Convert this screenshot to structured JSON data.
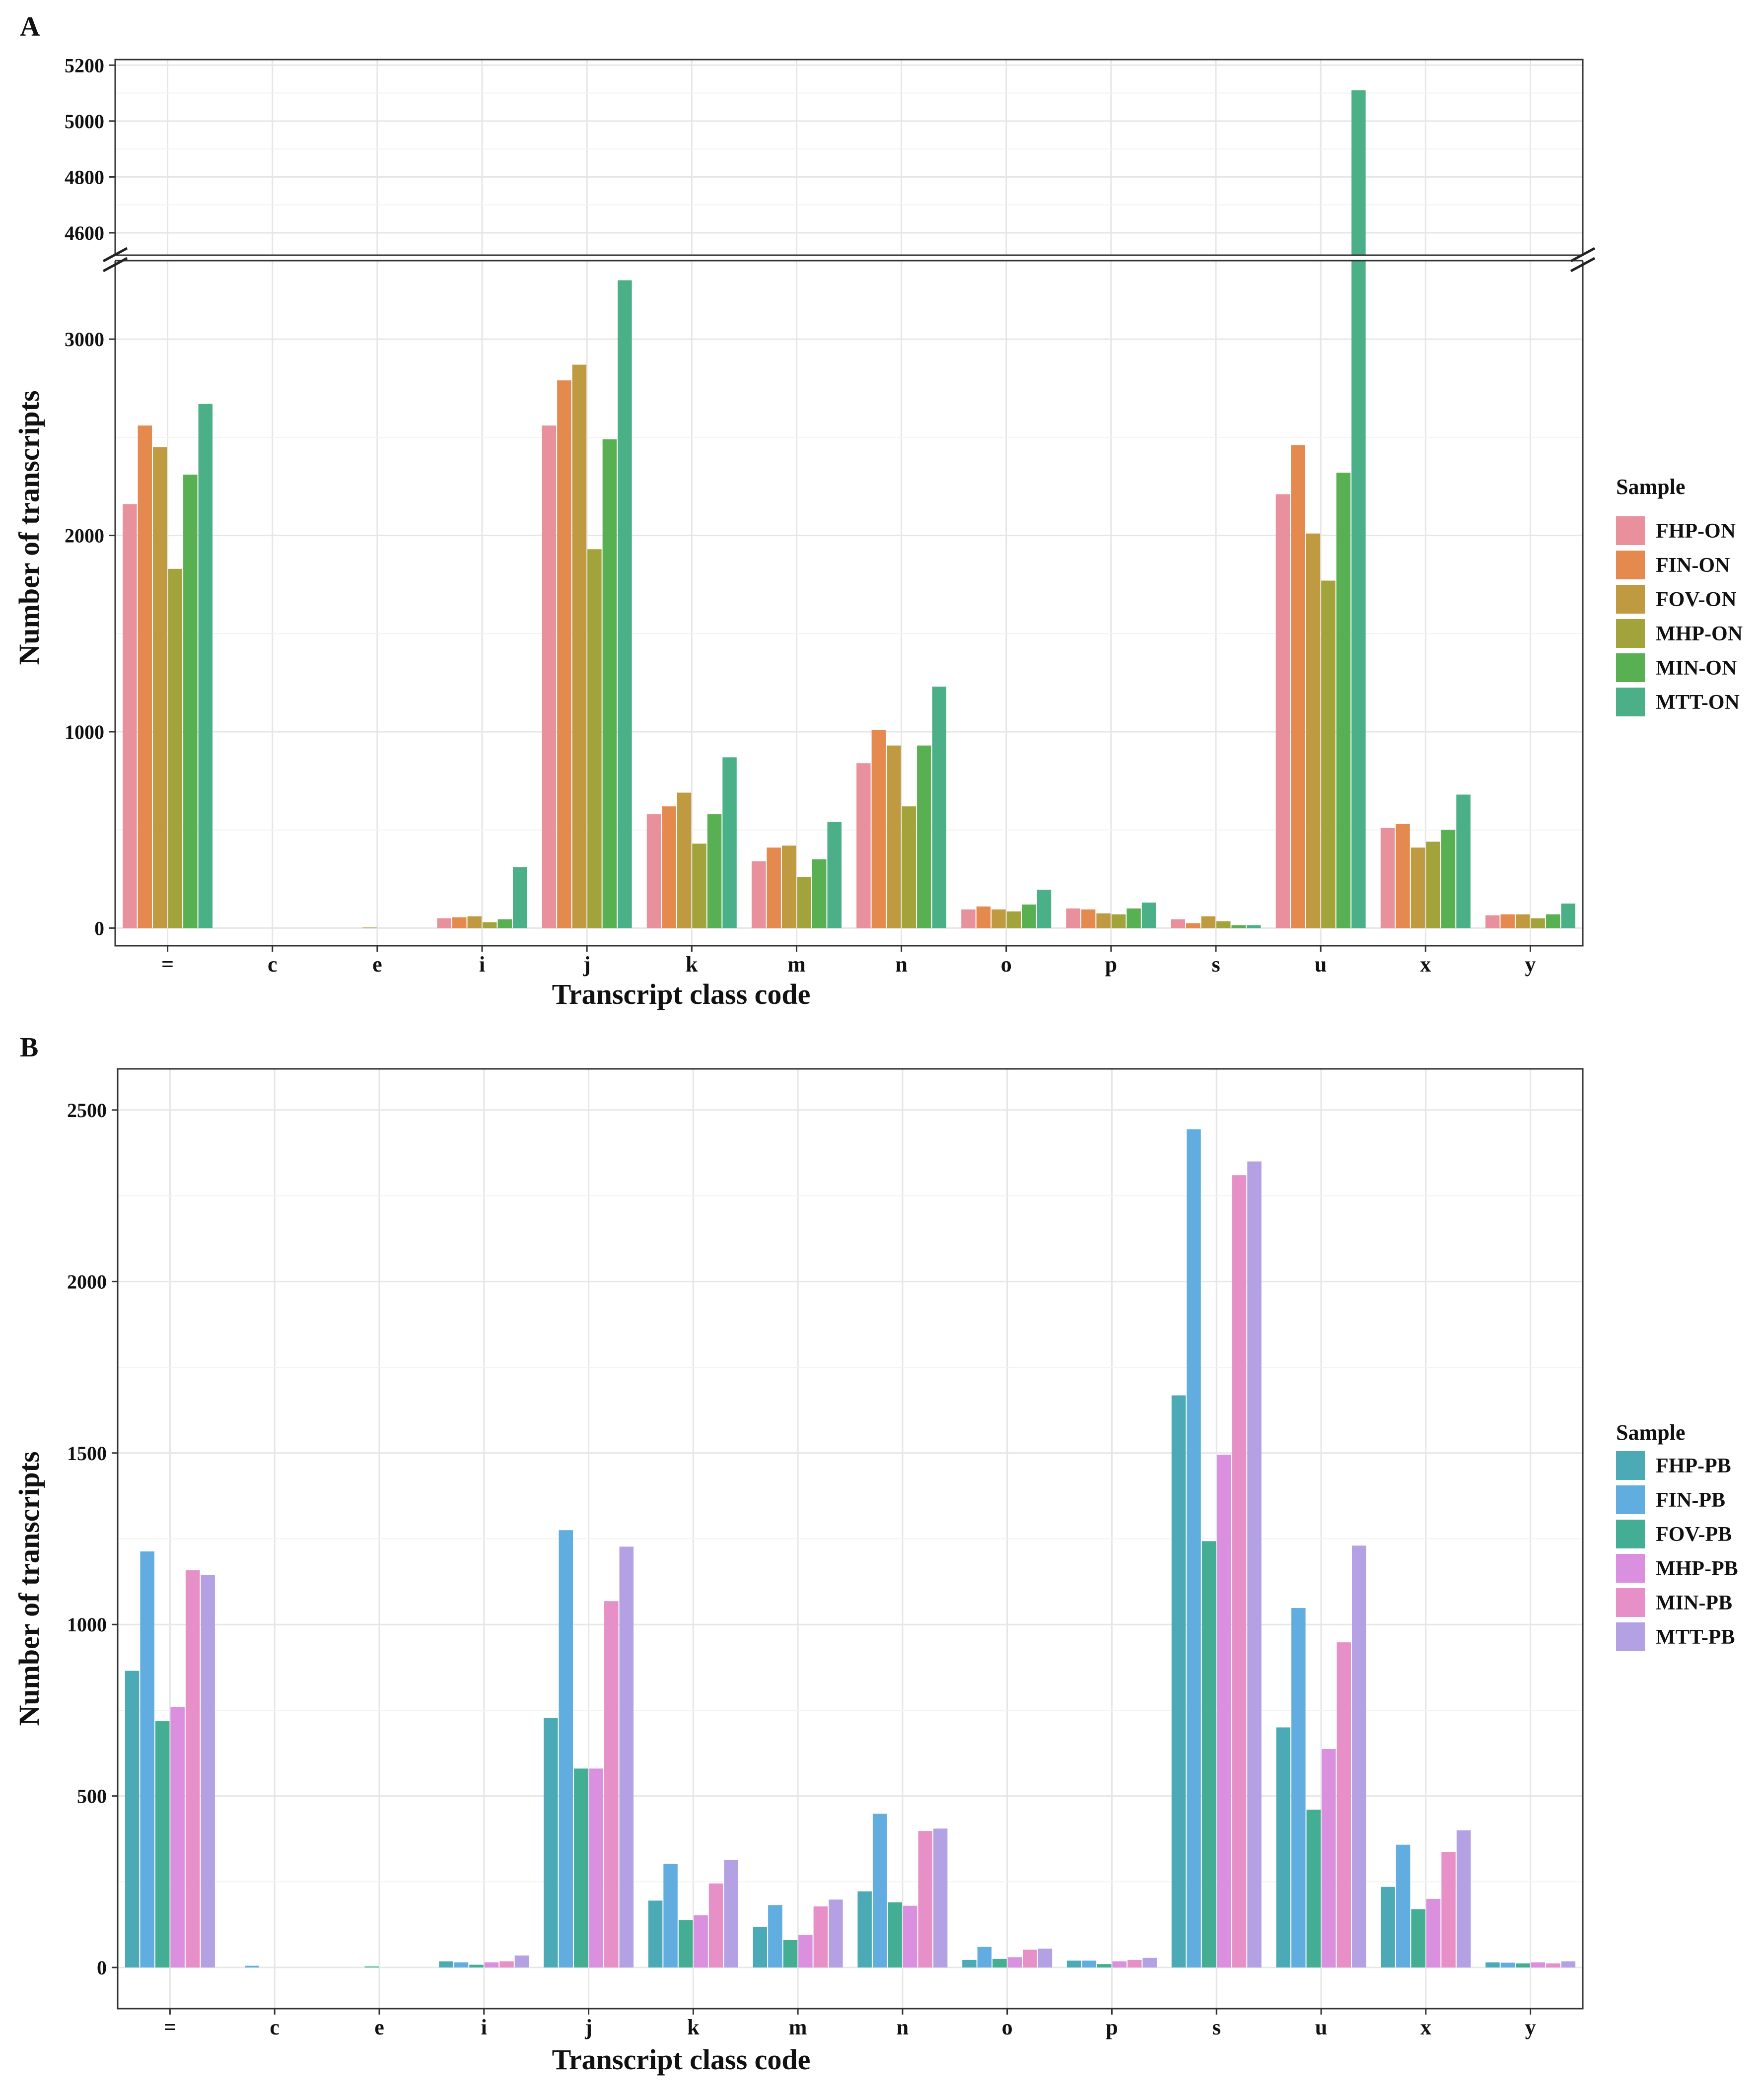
{
  "chart_data": [
    {
      "panel": "A",
      "type": "bar",
      "xlabel": "Transcript class code",
      "ylabel": "Number of transcripts",
      "categories": [
        "=",
        "c",
        "e",
        "i",
        "j",
        "k",
        "m",
        "n",
        "o",
        "p",
        "s",
        "u",
        "x",
        "y"
      ],
      "y_axis_break": {
        "lower_range": [
          -90,
          3400
        ],
        "upper_range": [
          4520,
          5220
        ]
      },
      "yticks_lower": [
        0,
        1000,
        2000,
        3000
      ],
      "yticks_upper": [
        4600,
        4800,
        5000,
        5200
      ],
      "legend": {
        "title": "Sample",
        "position": "right"
      },
      "series": [
        {
          "name": "FHP-ON",
          "color": "#E8909B",
          "values": [
            2160,
            0,
            0,
            50,
            2560,
            580,
            340,
            840,
            95,
            100,
            45,
            2210,
            510,
            65
          ]
        },
        {
          "name": "FIN-ON",
          "color": "#E58A4E",
          "values": [
            2560,
            0,
            0,
            55,
            2790,
            620,
            410,
            1010,
            110,
            95,
            25,
            2460,
            530,
            70
          ]
        },
        {
          "name": "FOV-ON",
          "color": "#C09A41",
          "values": [
            2450,
            0,
            3,
            60,
            2870,
            690,
            420,
            930,
            95,
            75,
            60,
            2010,
            410,
            70
          ]
        },
        {
          "name": "MHP-ON",
          "color": "#A3A33C",
          "values": [
            1830,
            0,
            0,
            30,
            1930,
            430,
            260,
            620,
            85,
            70,
            35,
            1770,
            440,
            50
          ]
        },
        {
          "name": "MIN-ON",
          "color": "#58B052",
          "values": [
            2310,
            0,
            0,
            45,
            2490,
            580,
            350,
            930,
            120,
            100,
            15,
            2320,
            500,
            70
          ]
        },
        {
          "name": "MTT-ON",
          "color": "#4BAF87",
          "values": [
            2670,
            0,
            0,
            310,
            3300,
            870,
            540,
            1230,
            195,
            130,
            15,
            5110,
            680,
            125
          ]
        }
      ]
    },
    {
      "panel": "B",
      "type": "bar",
      "xlabel": "Transcript class code",
      "ylabel": "Number of transcripts",
      "categories": [
        "=",
        "c",
        "e",
        "i",
        "j",
        "k",
        "m",
        "n",
        "o",
        "p",
        "s",
        "u",
        "x",
        "y"
      ],
      "ylim": [
        -120,
        2620
      ],
      "yticks": [
        0,
        500,
        1000,
        1500,
        2000,
        2500
      ],
      "legend": {
        "title": "Sample",
        "position": "right"
      },
      "series": [
        {
          "name": "FHP-PB",
          "color": "#4BAAB6",
          "values": [
            865,
            0,
            0,
            18,
            728,
            195,
            118,
            222,
            22,
            20,
            1668,
            700,
            235,
            15
          ]
        },
        {
          "name": "FIN-PB",
          "color": "#62ADE0",
          "values": [
            1213,
            5,
            0,
            15,
            1275,
            302,
            182,
            448,
            60,
            20,
            2444,
            1048,
            358,
            14
          ]
        },
        {
          "name": "FOV-PB",
          "color": "#43AE94",
          "values": [
            718,
            0,
            3,
            8,
            580,
            138,
            80,
            190,
            25,
            10,
            1243,
            460,
            170,
            12
          ]
        },
        {
          "name": "MHP-PB",
          "color": "#DA8FDF",
          "values": [
            760,
            0,
            0,
            15,
            580,
            152,
            95,
            180,
            30,
            18,
            1495,
            637,
            200,
            15
          ]
        },
        {
          "name": "MIN-PB",
          "color": "#E690C7",
          "values": [
            1158,
            0,
            0,
            18,
            1068,
            245,
            178,
            398,
            52,
            22,
            2310,
            948,
            337,
            12
          ]
        },
        {
          "name": "MTT-PB",
          "color": "#B3A1E4",
          "values": [
            1145,
            0,
            0,
            35,
            1227,
            313,
            198,
            405,
            55,
            28,
            2350,
            1230,
            400,
            18
          ]
        }
      ]
    }
  ],
  "panels": {
    "a": {
      "letter": "A"
    },
    "b": {
      "letter": "B"
    }
  }
}
